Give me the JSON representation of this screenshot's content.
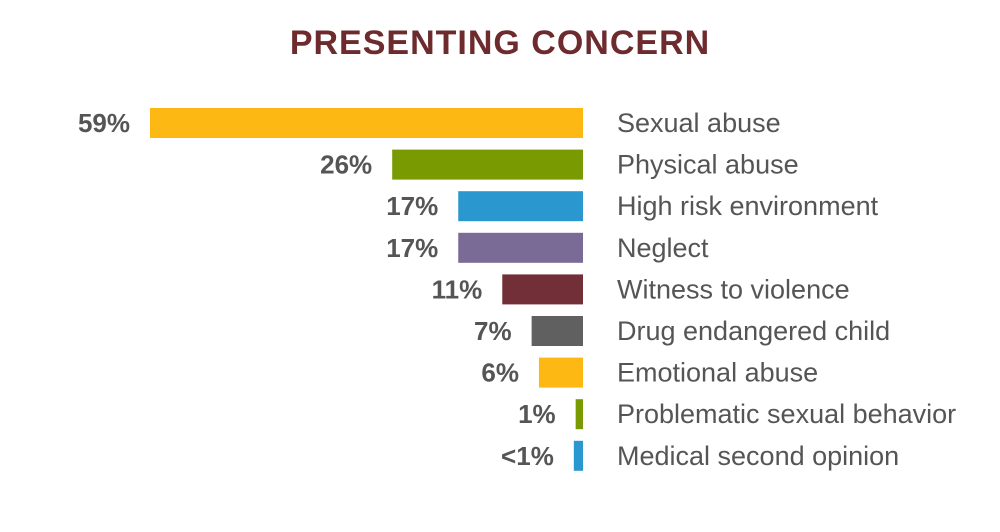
{
  "chart_data": {
    "type": "bar",
    "orientation": "horizontal",
    "title": "PRESENTING CONCERN",
    "xlabel": "",
    "ylabel": "",
    "grid": false,
    "legend": "none",
    "categories": [
      "Sexual abuse",
      "Physical abuse",
      "High risk environment",
      "Neglect",
      "Witness to violence",
      "Drug endangered child",
      "Emotional abuse",
      "Problematic sexual behavior",
      "Medical second opinion"
    ],
    "values": [
      59,
      26,
      17,
      17,
      11,
      7,
      6,
      1,
      0.5
    ],
    "value_labels": [
      "59%",
      "26%",
      "17%",
      "17%",
      "11%",
      "7%",
      "6%",
      "1%",
      "<1%"
    ],
    "colors": [
      "#fdb813",
      "#7a9a01",
      "#2b97cf",
      "#7a6a96",
      "#722f37",
      "#606060",
      "#fdb813",
      "#7a9a01",
      "#2b97cf"
    ],
    "xlim": [
      0,
      59
    ]
  }
}
